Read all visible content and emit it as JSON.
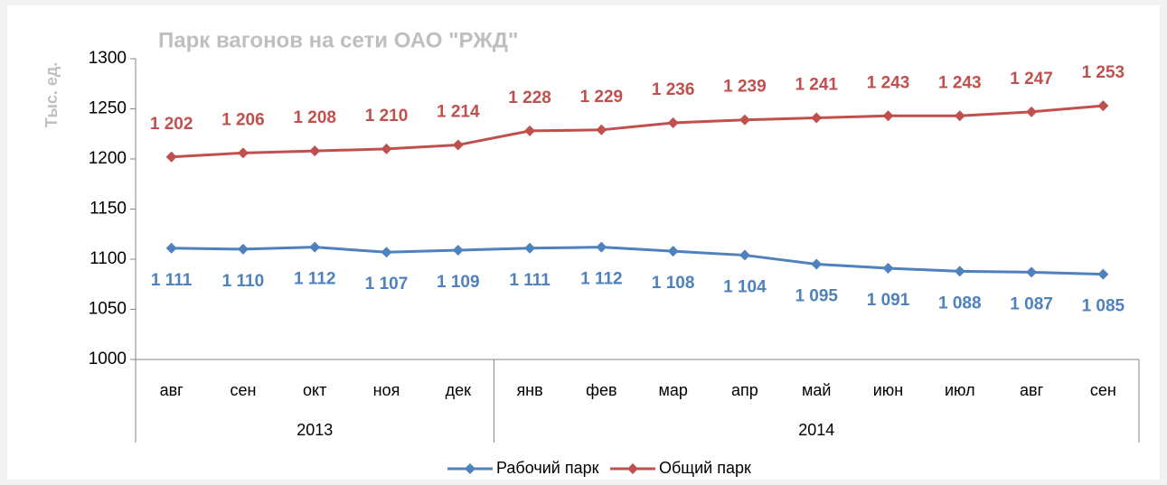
{
  "chart_data": {
    "type": "line",
    "title": "Парк вагонов на сети ОАО \"РЖД\"",
    "y_label": "Тыс. ед.",
    "categories": [
      "авг",
      "сен",
      "окт",
      "ноя",
      "дек",
      "янв",
      "фев",
      "мар",
      "апр",
      "май",
      "июн",
      "июл",
      "авг",
      "сен"
    ],
    "groups": [
      {
        "label": "2013",
        "size": 5
      },
      {
        "label": "2014",
        "size": 9
      }
    ],
    "series": [
      {
        "name": "Рабочий парк",
        "color": "#4f81bd",
        "values": [
          1111,
          1110,
          1112,
          1107,
          1109,
          1111,
          1112,
          1108,
          1104,
          1095,
          1091,
          1088,
          1087,
          1085
        ],
        "value_labels": [
          "1 111",
          "1 110",
          "1 112",
          "1 107",
          "1 109",
          "1 111",
          "1 112",
          "1 108",
          "1 104",
          "1 095",
          "1 091",
          "1 088",
          "1 087",
          "1 085"
        ]
      },
      {
        "name": "Общий парк",
        "color": "#c0504d",
        "values": [
          1202,
          1206,
          1208,
          1210,
          1214,
          1228,
          1229,
          1236,
          1239,
          1241,
          1243,
          1243,
          1247,
          1253
        ],
        "value_labels": [
          "1 202",
          "1 206",
          "1 208",
          "1 210",
          "1 214",
          "1 228",
          "1 229",
          "1 236",
          "1 239",
          "1 241",
          "1 243",
          "1 243",
          "1 247",
          "1 253"
        ]
      }
    ],
    "ylim": [
      1000,
      1300
    ],
    "yticks": [
      1000,
      1050,
      1100,
      1150,
      1200,
      1250,
      1300
    ],
    "grid": false,
    "legend": "bottom"
  }
}
